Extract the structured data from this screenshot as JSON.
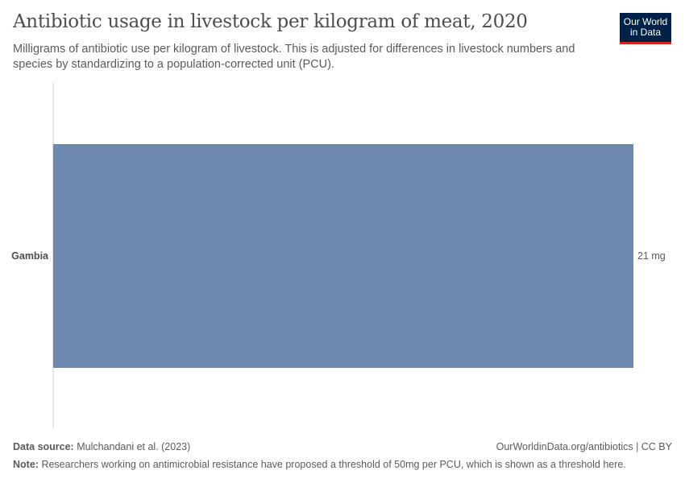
{
  "header": {
    "title": "Antibiotic usage in livestock per kilogram of meat, 2020",
    "subtitle": "Milligrams of antibiotic use per kilogram of livestock. This is adjusted for differences in livestock numbers and species by standardizing to a population-corrected unit (PCU).",
    "logo": "Our World in Data"
  },
  "chart_data": {
    "type": "bar",
    "orientation": "horizontal",
    "categories": [
      "Gambia"
    ],
    "values": [
      21
    ],
    "data_labels": [
      "21 mg"
    ],
    "unit": "mg",
    "xlim": [
      0,
      21
    ],
    "bar_color": "#6f88b0",
    "grid": false
  },
  "footer": {
    "source_label": "Data source:",
    "source": "Mulchandani et al. (2023)",
    "url": "OurWorldinData.org/antibiotics | CC BY",
    "note_label": "Note:",
    "note": "Researchers working on antimicrobial resistance have proposed a threshold of 50mg per PCU, which is shown as a threshold here."
  }
}
